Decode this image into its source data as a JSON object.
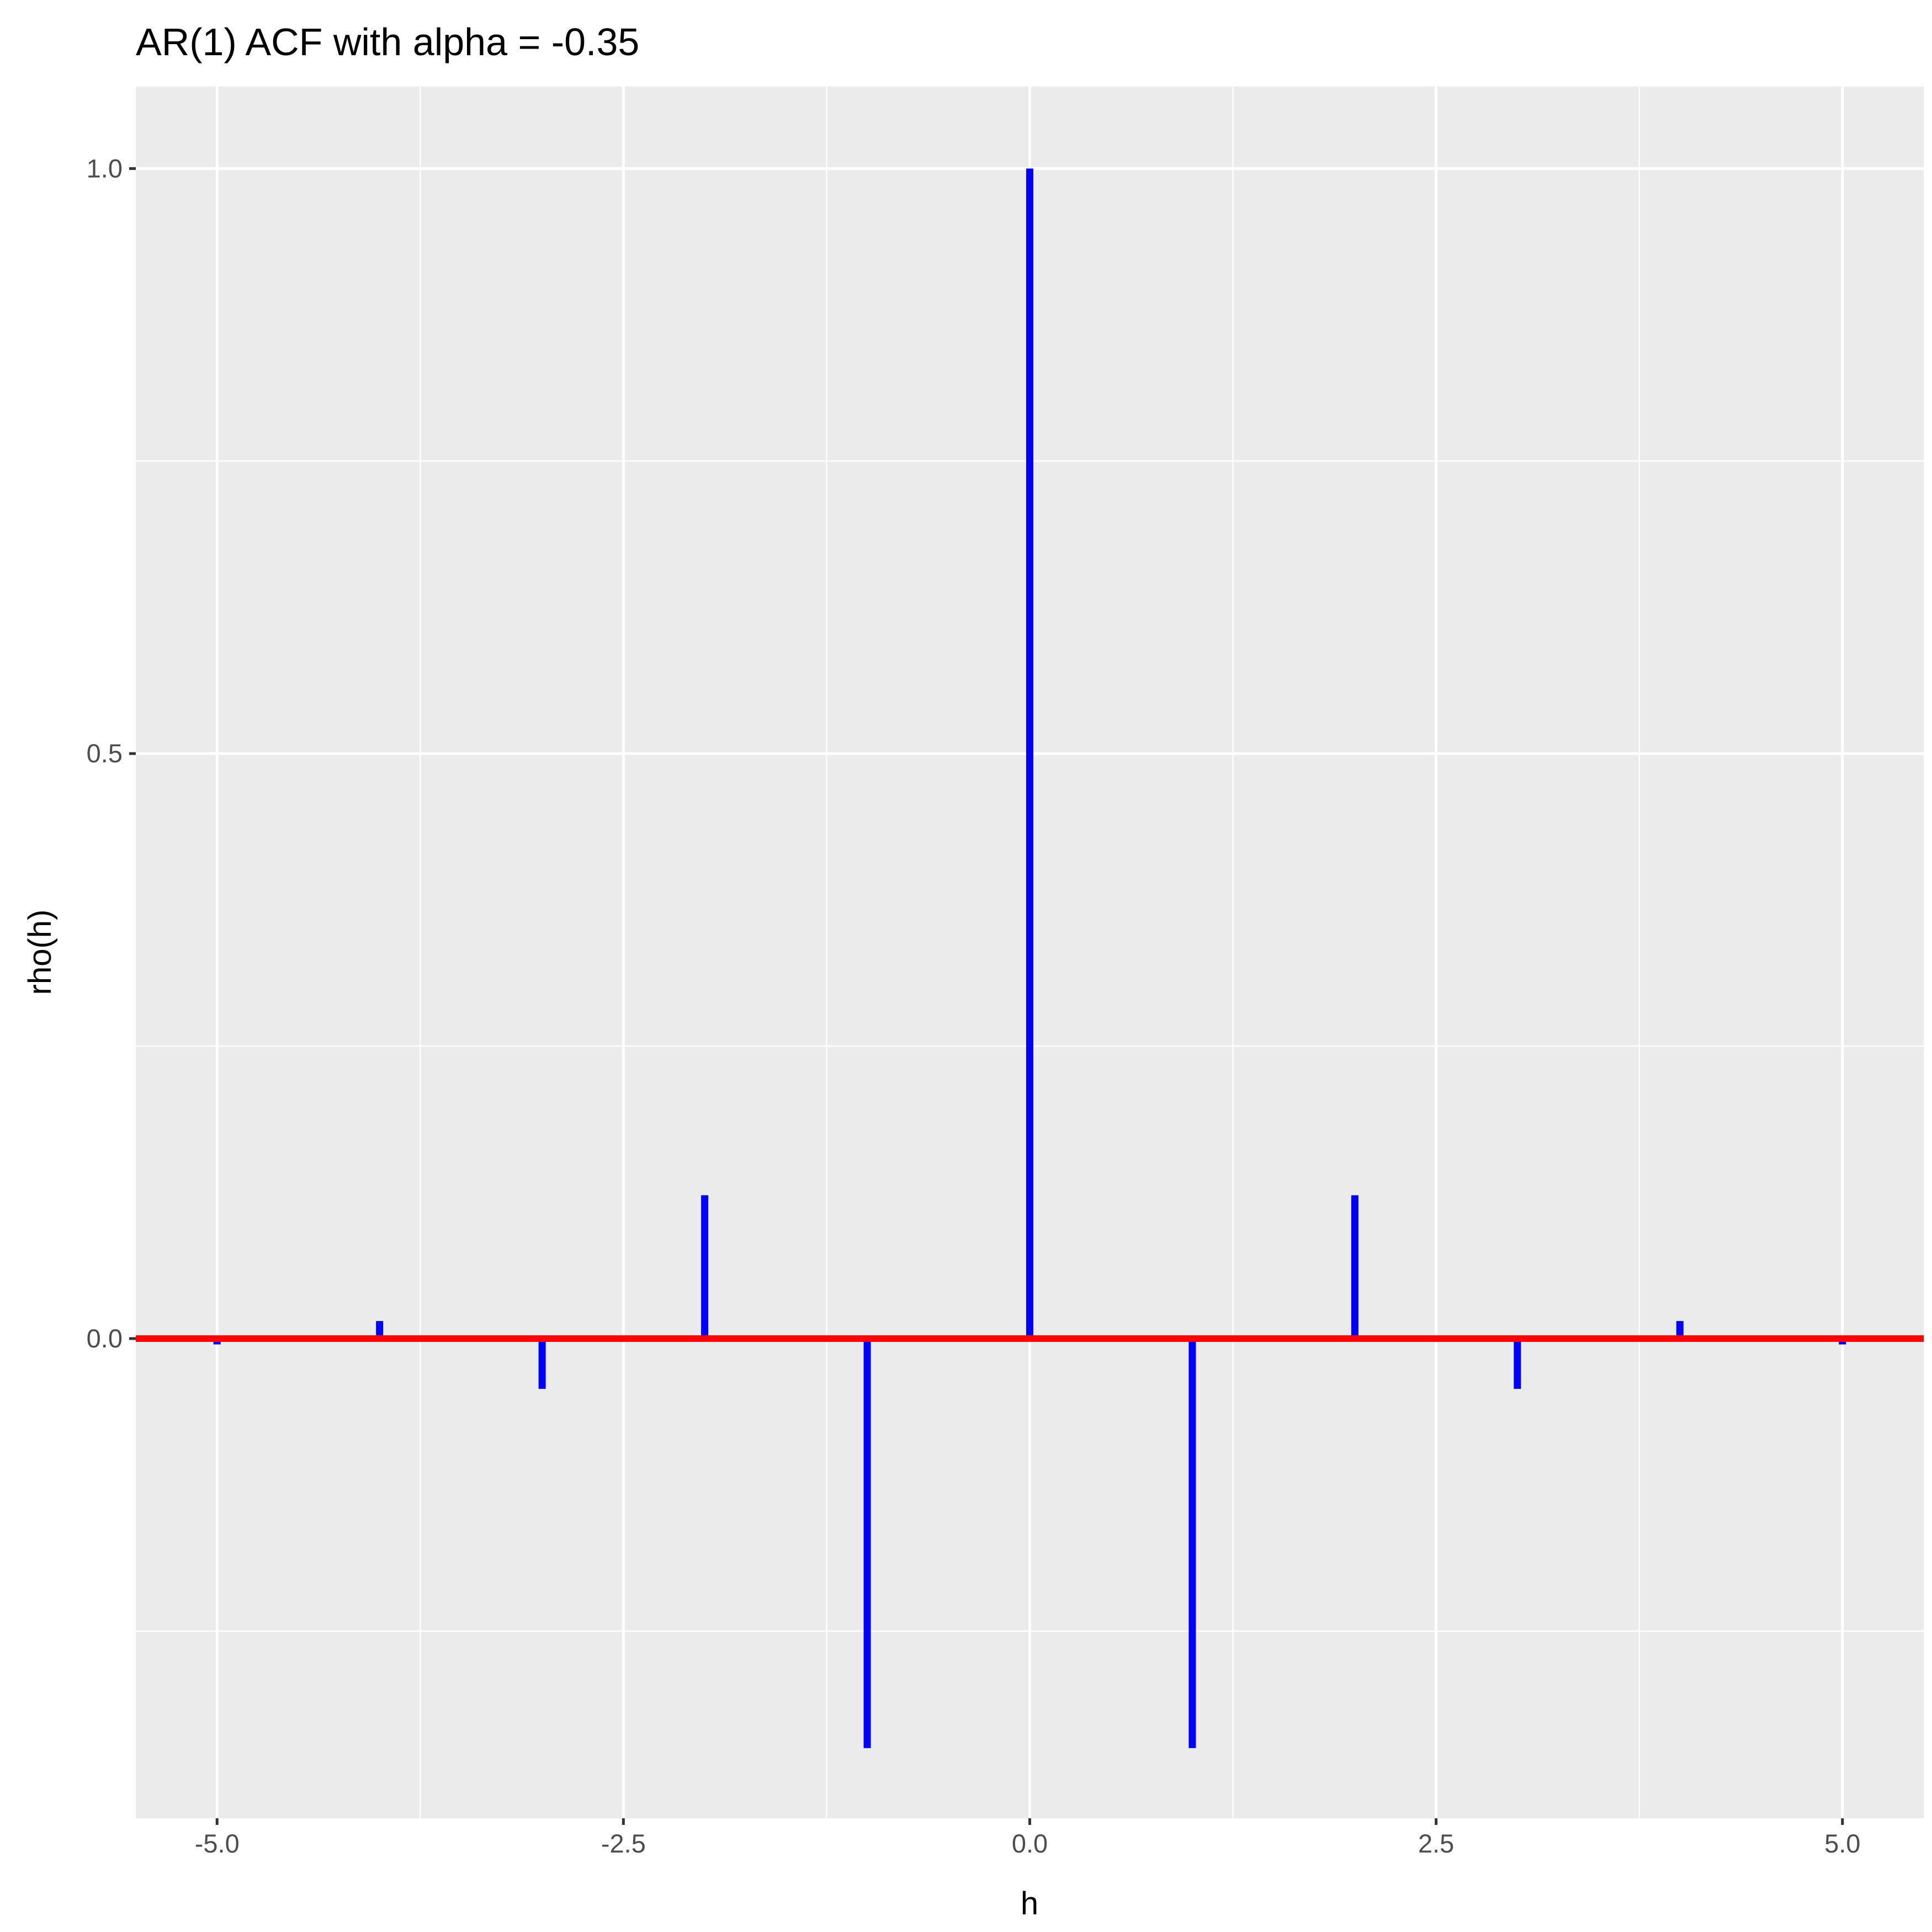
{
  "chart_data": {
    "type": "bar",
    "title": "AR(1) ACF with alpha = -0.35",
    "xlabel": "h",
    "ylabel": "rho(h)",
    "x": [
      -5,
      -4,
      -3,
      -2,
      -1,
      0,
      1,
      2,
      3,
      4,
      5
    ],
    "values": [
      -0.005,
      0.015,
      -0.043,
      0.1225,
      -0.35,
      1.0,
      -0.35,
      0.1225,
      -0.043,
      0.015,
      -0.005
    ],
    "xlim": [
      -5.5,
      5.5
    ],
    "ylim": [
      -0.41,
      1.07
    ],
    "x_ticks": [
      -5.0,
      -2.5,
      0.0,
      2.5,
      5.0
    ],
    "x_tick_labels": [
      "-5.0",
      "-2.5",
      "0.0",
      "2.5",
      "5.0"
    ],
    "y_ticks": [
      0.0,
      0.5,
      1.0
    ],
    "y_tick_labels": [
      "0.0",
      "0.5",
      "1.0"
    ],
    "reference_line": {
      "y": 0,
      "color": "#ff0000"
    },
    "bar_color": "#0000ff",
    "panel_color": "#ebebeb",
    "grid_color": "#ffffff",
    "grid": true,
    "legend": "none"
  }
}
